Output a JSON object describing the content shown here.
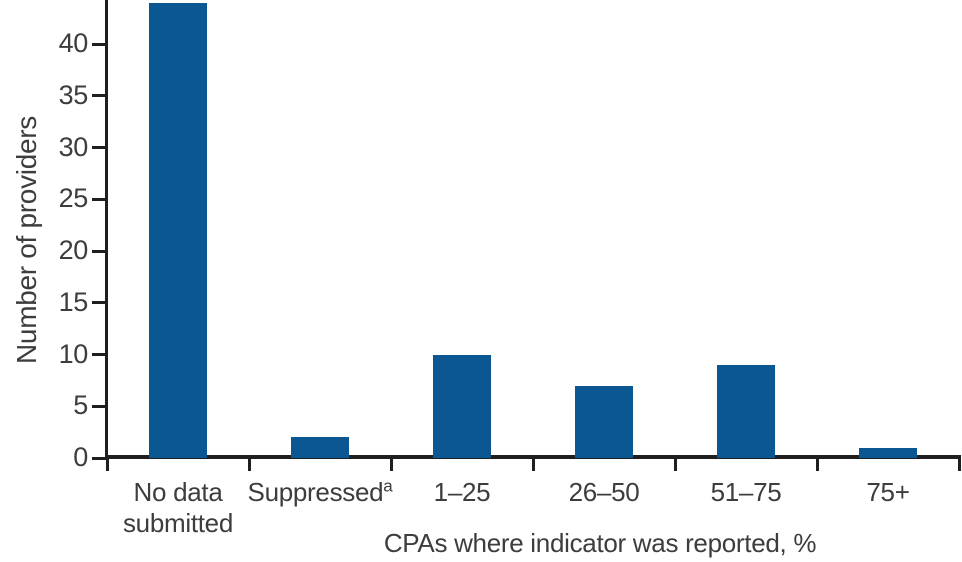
{
  "chart_data": {
    "type": "bar",
    "title": "",
    "categories": [
      "No data submitted",
      "Suppressedᵃ",
      "1–25",
      "26–50",
      "51–75",
      "75+"
    ],
    "category_display": [
      {
        "lines": [
          "No data",
          "submitted"
        ]
      },
      {
        "lines": [
          "Suppressed"
        ],
        "sup": "a"
      },
      {
        "lines": [
          "1–25"
        ]
      },
      {
        "lines": [
          "26–50"
        ]
      },
      {
        "lines": [
          "51–75"
        ]
      },
      {
        "lines": [
          "75+"
        ]
      }
    ],
    "values": [
      44,
      2,
      10,
      7,
      9,
      1
    ],
    "xlabel": "CPAs where indicator was reported, %",
    "ylabel": "Number of providers",
    "ylim": [
      0,
      44.3
    ],
    "yticks": [
      0,
      5,
      10,
      15,
      20,
      25,
      30,
      35,
      40
    ],
    "grid": false,
    "legend": null,
    "bar_color": "#0a5791",
    "axis_color": "#1f1f1f",
    "text_color": "#3d3d3d"
  }
}
